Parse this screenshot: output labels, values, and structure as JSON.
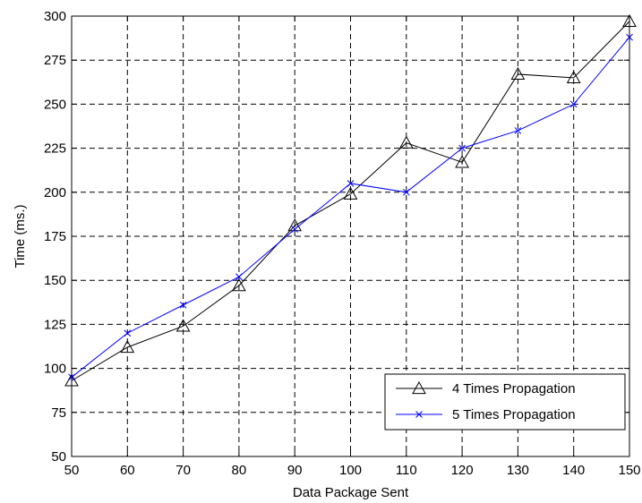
{
  "chart_data": {
    "type": "line",
    "title": "",
    "xlabel": "Data Package Sent",
    "ylabel": "Time (ms.)",
    "xlim": [
      50,
      150
    ],
    "ylim": [
      50,
      300
    ],
    "x_ticks": [
      50,
      60,
      70,
      80,
      90,
      100,
      110,
      120,
      130,
      140,
      150
    ],
    "y_ticks": [
      50,
      75,
      100,
      125,
      150,
      175,
      200,
      225,
      250,
      275,
      300
    ],
    "grid": true,
    "legend_position": "bottom-right",
    "x": [
      50,
      60,
      70,
      80,
      90,
      100,
      110,
      120,
      130,
      140,
      150
    ],
    "series": [
      {
        "name": "4 Times Propagation",
        "color": "#000000",
        "marker": "triangle",
        "values": [
          93,
          112,
          124,
          147,
          181,
          199,
          228,
          217,
          267,
          265,
          297
        ]
      },
      {
        "name": "5 Times Propagation",
        "color": "#0000ff",
        "marker": "x",
        "values": [
          95,
          120,
          136,
          152,
          179,
          205,
          200,
          225,
          235,
          250,
          288
        ]
      }
    ]
  }
}
